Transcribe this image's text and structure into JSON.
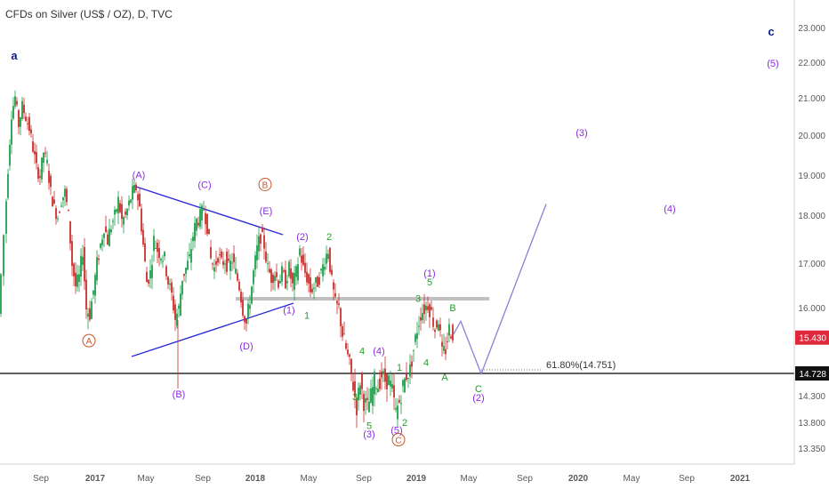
{
  "title": "CFDs on Silver (US$ / OZ), D, TVC",
  "chart_data": {
    "type": "candlestick",
    "y_axis": {
      "ticks": [
        "23.000",
        "22.000",
        "21.000",
        "20.000",
        "19.000",
        "18.000",
        "17.000",
        "16.000",
        "14.300",
        "13.800",
        "13.350"
      ]
    },
    "x_axis": {
      "ticks": [
        "Sep",
        "2017",
        "May",
        "Sep",
        "2018",
        "May",
        "Sep",
        "2019",
        "May",
        "Sep",
        "2020",
        "May",
        "Sep",
        "2021"
      ]
    },
    "price_line": {
      "value": 14.728,
      "label": "14.728"
    },
    "last_price": {
      "value": 15.43,
      "label": "15.430",
      "color": "#e0283c"
    },
    "fib_label": "61.80%(14.751)",
    "path": [
      [
        0,
        15.9
      ],
      [
        6,
        17.6
      ],
      [
        10,
        19.2
      ],
      [
        14,
        20.6
      ],
      [
        18,
        21.05
      ],
      [
        22,
        20.3
      ],
      [
        26,
        20.8
      ],
      [
        30,
        20.5
      ],
      [
        34,
        20.2
      ],
      [
        38,
        19.7
      ],
      [
        42,
        19.2
      ],
      [
        46,
        19.0
      ],
      [
        50,
        19.6
      ],
      [
        54,
        19.3
      ],
      [
        58,
        18.6
      ],
      [
        62,
        18.2
      ],
      [
        66,
        18.0
      ],
      [
        70,
        18.4
      ],
      [
        74,
        18.6
      ],
      [
        78,
        18.0
      ],
      [
        82,
        17.0
      ],
      [
        86,
        16.5
      ],
      [
        90,
        16.7
      ],
      [
        94,
        17.3
      ],
      [
        98,
        16.0
      ],
      [
        102,
        15.9
      ],
      [
        106,
        16.4
      ],
      [
        110,
        17.0
      ],
      [
        114,
        17.4
      ],
      [
        118,
        17.8
      ],
      [
        122,
        17.5
      ],
      [
        126,
        17.8
      ],
      [
        130,
        18.0
      ],
      [
        134,
        18.4
      ],
      [
        138,
        17.9
      ],
      [
        142,
        18.0
      ],
      [
        146,
        18.3
      ],
      [
        150,
        18.6
      ],
      [
        154,
        18.7
      ],
      [
        158,
        18.2
      ],
      [
        162,
        17.4
      ],
      [
        166,
        16.6
      ],
      [
        170,
        16.8
      ],
      [
        174,
        17.5
      ],
      [
        178,
        17.3
      ],
      [
        182,
        17.2
      ],
      [
        186,
        17.1
      ],
      [
        190,
        16.6
      ],
      [
        194,
        16.3
      ],
      [
        198,
        15.8
      ],
      [
        202,
        16.0
      ],
      [
        206,
        16.7
      ],
      [
        210,
        16.9
      ],
      [
        214,
        17.1
      ],
      [
        218,
        17.6
      ],
      [
        222,
        17.9
      ],
      [
        226,
        18.0
      ],
      [
        230,
        18.2
      ],
      [
        234,
        17.8
      ],
      [
        238,
        17.1
      ],
      [
        242,
        16.9
      ],
      [
        246,
        17.2
      ],
      [
        250,
        17.0
      ],
      [
        254,
        17.1
      ],
      [
        258,
        16.9
      ],
      [
        262,
        17.1
      ],
      [
        266,
        16.8
      ],
      [
        270,
        16.5
      ],
      [
        274,
        16.0
      ],
      [
        278,
        15.7
      ],
      [
        282,
        16.2
      ],
      [
        286,
        16.8
      ],
      [
        290,
        17.3
      ],
      [
        294,
        17.6
      ],
      [
        298,
        17.4
      ],
      [
        302,
        16.9
      ],
      [
        306,
        16.7
      ],
      [
        310,
        16.8
      ],
      [
        314,
        16.6
      ],
      [
        318,
        16.8
      ],
      [
        322,
        16.6
      ],
      [
        326,
        16.9
      ],
      [
        330,
        16.5
      ],
      [
        334,
        16.8
      ],
      [
        338,
        17.3
      ],
      [
        342,
        16.9
      ],
      [
        346,
        16.7
      ],
      [
        350,
        16.4
      ],
      [
        354,
        16.5
      ],
      [
        358,
        16.6
      ],
      [
        362,
        16.8
      ],
      [
        366,
        17.1
      ],
      [
        370,
        17.3
      ],
      [
        374,
        16.6
      ],
      [
        378,
        16.1
      ],
      [
        382,
        16.0
      ],
      [
        386,
        15.5
      ],
      [
        390,
        15.2
      ],
      [
        394,
        14.9
      ],
      [
        398,
        14.5
      ],
      [
        402,
        14.1
      ],
      [
        406,
        14.6
      ],
      [
        410,
        14.2
      ],
      [
        414,
        14.1
      ],
      [
        418,
        14.3
      ],
      [
        422,
        14.6
      ],
      [
        426,
        14.5
      ],
      [
        430,
        14.7
      ],
      [
        434,
        14.6
      ],
      [
        438,
        14.6
      ],
      [
        442,
        14.4
      ],
      [
        446,
        14.0
      ],
      [
        450,
        14.2
      ],
      [
        454,
        14.5
      ],
      [
        458,
        14.7
      ],
      [
        462,
        14.8
      ],
      [
        466,
        15.2
      ],
      [
        470,
        15.6
      ],
      [
        474,
        15.9
      ],
      [
        478,
        16.0
      ],
      [
        482,
        16.1
      ],
      [
        486,
        15.9
      ],
      [
        490,
        15.6
      ],
      [
        494,
        15.8
      ],
      [
        498,
        15.1
      ],
      [
        502,
        15.2
      ],
      [
        506,
        15.6
      ],
      [
        510,
        15.5
      ]
    ],
    "projection": [
      [
        510,
        15.5
      ],
      [
        518,
        15.75
      ],
      [
        541,
        14.72
      ],
      [
        614,
        18.3
      ]
    ],
    "labels": [
      {
        "text": "a",
        "x": 16,
        "v": 22.1,
        "cls": "navy"
      },
      {
        "text": "c",
        "x": 867,
        "v": 22.8,
        "cls": "navy"
      },
      {
        "text": "(5)",
        "x": 869,
        "v": 21.9,
        "cls": "purple"
      },
      {
        "text": "(3)",
        "x": 654,
        "v": 20.0,
        "cls": "purple"
      },
      {
        "text": "(4)",
        "x": 753,
        "v": 18.1,
        "cls": "purple"
      },
      {
        "text": "(A)",
        "x": 156,
        "v": 18.95,
        "cls": "purple"
      },
      {
        "text": "(C)",
        "x": 230,
        "v": 18.7,
        "cls": "purple"
      },
      {
        "text": "(E)",
        "x": 299,
        "v": 18.05,
        "cls": "purple"
      },
      {
        "text": "(2)",
        "x": 340,
        "v": 17.5,
        "cls": "purple"
      },
      {
        "text": "2",
        "x": 370,
        "v": 17.5,
        "cls": "green"
      },
      {
        "text": "(1)",
        "x": 325,
        "v": 15.9,
        "cls": "purple"
      },
      {
        "text": "1",
        "x": 345,
        "v": 15.8,
        "cls": "green"
      },
      {
        "text": "(D)",
        "x": 277,
        "v": 15.2,
        "cls": "purple"
      },
      {
        "text": "(B)",
        "x": 201,
        "v": 14.28,
        "cls": "purple"
      },
      {
        "text": "4",
        "x": 407,
        "v": 15.1,
        "cls": "green"
      },
      {
        "text": "(4)",
        "x": 426,
        "v": 15.1,
        "cls": "purple"
      },
      {
        "text": "1",
        "x": 449,
        "v": 14.78,
        "cls": "green"
      },
      {
        "text": "3",
        "x": 399,
        "v": 14.23,
        "cls": "green"
      },
      {
        "text": "5",
        "x": 415,
        "v": 13.7,
        "cls": "green"
      },
      {
        "text": "(3)",
        "x": 415,
        "v": 13.55,
        "cls": "purple"
      },
      {
        "text": "(5)",
        "x": 446,
        "v": 13.62,
        "cls": "purple"
      },
      {
        "text": "2",
        "x": 455,
        "v": 13.75,
        "cls": "green"
      },
      {
        "text": "3",
        "x": 470,
        "v": 16.15,
        "cls": "green"
      },
      {
        "text": "(1)",
        "x": 483,
        "v": 16.72,
        "cls": "purple"
      },
      {
        "text": "5",
        "x": 483,
        "v": 16.52,
        "cls": "green"
      },
      {
        "text": "B",
        "x": 509,
        "v": 15.95,
        "cls": "green"
      },
      {
        "text": "4",
        "x": 479,
        "v": 14.88,
        "cls": "green"
      },
      {
        "text": "A",
        "x": 500,
        "v": 14.6,
        "cls": "green"
      },
      {
        "text": "C",
        "x": 538,
        "v": 14.38,
        "cls": "green"
      },
      {
        "text": "(2)",
        "x": 538,
        "v": 14.22,
        "cls": "purple"
      }
    ],
    "circled": [
      {
        "text": "A",
        "x": 100,
        "v": 15.3
      },
      {
        "text": "B",
        "x": 298,
        "v": 18.7
      },
      {
        "text": "C",
        "x": 448,
        "v": 13.45
      }
    ]
  }
}
